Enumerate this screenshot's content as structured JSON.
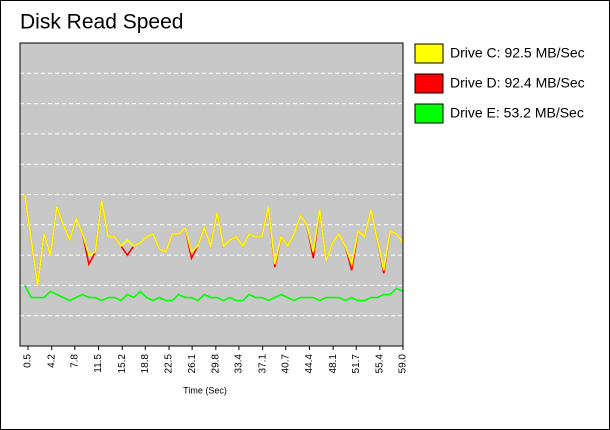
{
  "chart_data": {
    "type": "line",
    "title": "Disk Read Speed",
    "x_label": "Time (Sec)",
    "x": [
      0,
      1,
      2,
      3,
      4,
      5,
      6,
      7,
      8,
      9,
      10,
      11,
      12,
      13,
      14,
      15,
      16,
      17,
      18,
      19,
      20,
      21,
      22,
      23,
      24,
      25,
      26,
      27,
      28,
      29,
      30,
      31,
      32,
      33,
      34,
      35,
      36,
      37,
      38,
      39,
      40,
      41,
      42,
      43,
      44,
      45,
      46,
      47,
      48,
      49,
      50,
      51,
      52,
      53,
      54,
      55,
      56,
      57,
      58,
      59
    ],
    "series": [
      {
        "name": "Drive E: 53.2 MB/Sec",
        "color": "#00ff00",
        "values": [
          20,
          16,
          16,
          16,
          18,
          17,
          16,
          15,
          16,
          17,
          16,
          16,
          15,
          16,
          16,
          15,
          17,
          16,
          18,
          16,
          15,
          16,
          15,
          15,
          17,
          16,
          16,
          15,
          17,
          16,
          16,
          15,
          16,
          15,
          15,
          17,
          16,
          16,
          15,
          16,
          17,
          16,
          15,
          16,
          16,
          16,
          15,
          16,
          16,
          16,
          15,
          16,
          15,
          15,
          16,
          16,
          17,
          17,
          19,
          18
        ]
      },
      {
        "name": "Drive D: 92.4 MB/Sec",
        "color": "#ff0000",
        "values": [
          50,
          35,
          20,
          37,
          30,
          46,
          40,
          35,
          42,
          37,
          27,
          31,
          48,
          36,
          36,
          33,
          30,
          33,
          34,
          36,
          37,
          32,
          31,
          37,
          37,
          39,
          29,
          33,
          39,
          33,
          44,
          33,
          35,
          36,
          33,
          37,
          36,
          36,
          46,
          26,
          36,
          33,
          37,
          43,
          40,
          29,
          45,
          28,
          34,
          37,
          33,
          25,
          38,
          36,
          45,
          35,
          24,
          38,
          37,
          34
        ]
      },
      {
        "name": "Drive C: 92.5 MB/Sec",
        "color": "#ffff00",
        "values": [
          50,
          35,
          20,
          37,
          30,
          46,
          40,
          35,
          42,
          37,
          30,
          31,
          48,
          36,
          36,
          33,
          35,
          33,
          34,
          36,
          37,
          32,
          31,
          37,
          37,
          39,
          31,
          33,
          39,
          33,
          44,
          33,
          35,
          36,
          33,
          37,
          36,
          36,
          46,
          27,
          36,
          33,
          37,
          43,
          40,
          31,
          45,
          28,
          34,
          37,
          33,
          27,
          38,
          36,
          45,
          35,
          25,
          38,
          37,
          34
        ]
      }
    ],
    "xlim": [
      -0.75,
      59
    ],
    "xticks": [
      0.5,
      4.2,
      7.8,
      11.5,
      15.2,
      18.8,
      22.5,
      26.1,
      29.8,
      33.4,
      37.1,
      40.7,
      44.4,
      48.1,
      51.7,
      55.4,
      {
        "value": 59,
        "label": "59.0"
      }
    ],
    "ylim": [
      0,
      100
    ],
    "yticks": [
      10,
      20,
      30,
      40,
      50,
      60,
      70,
      80,
      90
    ],
    "grid": true,
    "legend": "right",
    "plot_background": "#c8c8c8"
  }
}
